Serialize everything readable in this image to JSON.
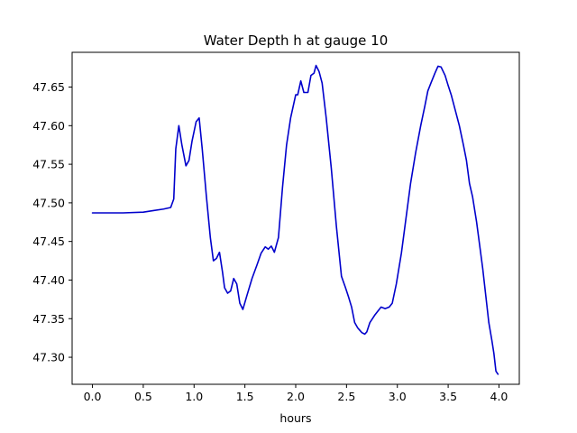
{
  "chart_data": {
    "type": "line",
    "title": "Water Depth h at gauge 10",
    "xlabel": "hours",
    "ylabel": "",
    "xlim": [
      -0.2,
      4.2
    ],
    "ylim": [
      47.265,
      47.695
    ],
    "xticks": [
      0.0,
      0.5,
      1.0,
      1.5,
      2.0,
      2.5,
      3.0,
      3.5,
      4.0
    ],
    "xtick_labels": [
      "0.0",
      "0.5",
      "1.0",
      "1.5",
      "2.0",
      "2.5",
      "3.0",
      "3.5",
      "4.0"
    ],
    "yticks": [
      47.3,
      47.35,
      47.4,
      47.45,
      47.5,
      47.55,
      47.6,
      47.65
    ],
    "ytick_labels": [
      "47.30",
      "47.35",
      "47.40",
      "47.45",
      "47.50",
      "47.55",
      "47.60",
      "47.65"
    ],
    "grid": false,
    "series": [
      {
        "color": "#0000cc",
        "x": [
          0.0,
          0.3,
          0.5,
          0.6,
          0.7,
          0.77,
          0.8,
          0.82,
          0.85,
          0.88,
          0.92,
          0.95,
          0.98,
          1.02,
          1.05,
          1.08,
          1.12,
          1.16,
          1.19,
          1.22,
          1.25,
          1.28,
          1.3,
          1.33,
          1.36,
          1.39,
          1.42,
          1.45,
          1.48,
          1.52,
          1.57,
          1.62,
          1.66,
          1.7,
          1.73,
          1.76,
          1.79,
          1.83,
          1.87,
          1.91,
          1.95,
          1.98,
          2.0,
          2.02,
          2.05,
          2.08,
          2.12,
          2.15,
          2.18,
          2.2,
          2.23,
          2.26,
          2.3,
          2.35,
          2.4,
          2.45,
          2.49,
          2.52,
          2.55,
          2.58,
          2.61,
          2.63,
          2.65,
          2.68,
          2.7,
          2.73,
          2.78,
          2.84,
          2.88,
          2.92,
          2.95,
          2.99,
          3.04,
          3.08,
          3.13,
          3.18,
          3.23,
          3.27,
          3.3,
          3.33,
          3.37,
          3.4,
          3.43,
          3.47,
          3.5,
          3.53,
          3.57,
          3.61,
          3.65,
          3.68,
          3.71,
          3.74,
          3.78,
          3.81,
          3.84,
          3.87,
          3.9,
          3.93,
          3.95,
          3.97,
          3.99
        ],
        "y": [
          47.487,
          47.487,
          47.488,
          47.49,
          47.492,
          47.494,
          47.505,
          47.57,
          47.6,
          47.575,
          47.548,
          47.555,
          47.58,
          47.605,
          47.61,
          47.57,
          47.51,
          47.455,
          47.425,
          47.428,
          47.436,
          47.41,
          47.39,
          47.383,
          47.386,
          47.402,
          47.395,
          47.37,
          47.362,
          47.38,
          47.402,
          47.42,
          47.435,
          47.443,
          47.44,
          47.444,
          47.436,
          47.455,
          47.52,
          47.575,
          47.61,
          47.628,
          47.64,
          47.64,
          47.658,
          47.643,
          47.643,
          47.665,
          47.668,
          47.678,
          47.67,
          47.655,
          47.61,
          47.545,
          47.47,
          47.405,
          47.39,
          47.378,
          47.365,
          47.345,
          47.338,
          47.335,
          47.332,
          47.33,
          47.333,
          47.345,
          47.355,
          47.365,
          47.363,
          47.365,
          47.37,
          47.395,
          47.435,
          47.475,
          47.525,
          47.565,
          47.6,
          47.625,
          47.645,
          47.655,
          47.668,
          47.677,
          47.676,
          47.665,
          47.652,
          47.64,
          47.62,
          47.6,
          47.575,
          47.555,
          47.525,
          47.508,
          47.475,
          47.445,
          47.415,
          47.38,
          47.345,
          47.322,
          47.305,
          47.282,
          47.278
        ]
      }
    ]
  }
}
